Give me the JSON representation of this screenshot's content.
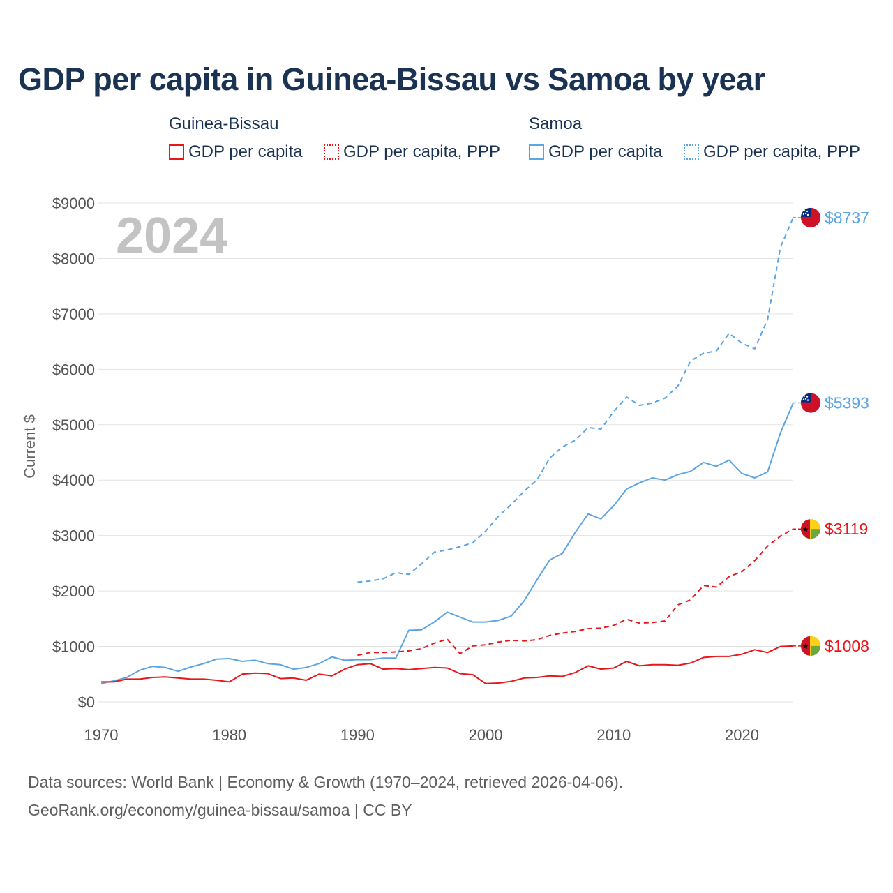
{
  "title": "GDP per capita in Guinea-Bissau vs Samoa by year",
  "legend": {
    "groups": [
      {
        "name": "Guinea-Bissau",
        "items": [
          "GDP per capita",
          "GDP per capita, PPP"
        ]
      },
      {
        "name": "Samoa",
        "items": [
          "GDP per capita",
          "GDP per capita, PPP"
        ]
      }
    ]
  },
  "colors": {
    "guinea_bissau": "#e8161a",
    "samoa": "#5ba4e5",
    "grid": "#e3e3e3"
  },
  "footer": {
    "line1": "Data sources: World Bank | Economy & Growth (1970–2024, retrieved 2026-04-06).",
    "line2": "GeoRank.org/economy/guinea-bissau/samoa | CC BY"
  },
  "chart_data": {
    "type": "line",
    "title": "GDP per capita in Guinea-Bissau vs Samoa by year",
    "year_label": "2024",
    "ylabel": "Current $",
    "xlabel": "",
    "xlim": [
      1970,
      2024
    ],
    "ylim": [
      0,
      9000
    ],
    "x_ticks": [
      1970,
      1980,
      1990,
      2000,
      2010,
      2020
    ],
    "y_ticks": [
      0,
      1000,
      2000,
      3000,
      4000,
      5000,
      6000,
      7000,
      8000,
      9000
    ],
    "y_tick_labels": [
      "$0",
      "$1000",
      "$2000",
      "$3000",
      "$4000",
      "$5000",
      "$6000",
      "$7000",
      "$8000",
      "$9000"
    ],
    "grid": true,
    "series": [
      {
        "name": "Samoa GDP per capita, PPP",
        "country": "Samoa",
        "color": "#5ba4e5",
        "dashed": true,
        "end_label": "$8737",
        "flag": "samoa",
        "x": [
          1990,
          1991,
          1992,
          1993,
          1994,
          1995,
          1996,
          1997,
          1998,
          1999,
          2000,
          2001,
          2002,
          2003,
          2004,
          2005,
          2006,
          2007,
          2008,
          2009,
          2010,
          2011,
          2012,
          2013,
          2014,
          2015,
          2016,
          2017,
          2018,
          2019,
          2020,
          2021,
          2022,
          2023,
          2024
        ],
        "values": [
          2160,
          2180,
          2220,
          2330,
          2300,
          2490,
          2700,
          2740,
          2800,
          2870,
          3080,
          3350,
          3560,
          3800,
          4000,
          4400,
          4600,
          4720,
          4950,
          4920,
          5240,
          5500,
          5350,
          5390,
          5480,
          5700,
          6150,
          6290,
          6330,
          6650,
          6470,
          6370,
          6900,
          8200,
          8737
        ]
      },
      {
        "name": "Samoa GDP per capita",
        "country": "Samoa",
        "color": "#5ba4e5",
        "dashed": false,
        "end_label": "$5393",
        "flag": "samoa",
        "x": [
          1970,
          1971,
          1972,
          1973,
          1974,
          1975,
          1976,
          1977,
          1978,
          1979,
          1980,
          1981,
          1982,
          1983,
          1984,
          1985,
          1986,
          1987,
          1988,
          1989,
          1990,
          1991,
          1992,
          1993,
          1994,
          1995,
          1996,
          1997,
          1998,
          1999,
          2000,
          2001,
          2002,
          2003,
          2004,
          2005,
          2006,
          2007,
          2008,
          2009,
          2010,
          2011,
          2012,
          2013,
          2014,
          2015,
          2016,
          2017,
          2018,
          2019,
          2020,
          2021,
          2022,
          2023,
          2024
        ],
        "values": [
          330,
          380,
          440,
          570,
          640,
          620,
          550,
          630,
          690,
          770,
          780,
          730,
          750,
          690,
          670,
          590,
          620,
          690,
          810,
          750,
          760,
          760,
          790,
          790,
          1290,
          1300,
          1440,
          1620,
          1530,
          1440,
          1440,
          1470,
          1550,
          1820,
          2200,
          2560,
          2680,
          3060,
          3390,
          3300,
          3540,
          3840,
          3950,
          4040,
          4000,
          4100,
          4160,
          4320,
          4250,
          4360,
          4120,
          4040,
          4150,
          4850,
          5393
        ]
      },
      {
        "name": "Guinea-Bissau GDP per capita, PPP",
        "country": "Guinea-Bissau",
        "color": "#e8161a",
        "dashed": true,
        "end_label": "$3119",
        "flag": "guinea-bissau",
        "x": [
          1990,
          1991,
          1992,
          1993,
          1994,
          1995,
          1996,
          1997,
          1998,
          1999,
          2000,
          2001,
          2002,
          2003,
          2004,
          2005,
          2006,
          2007,
          2008,
          2009,
          2010,
          2011,
          2012,
          2013,
          2014,
          2015,
          2016,
          2017,
          2018,
          2019,
          2020,
          2021,
          2022,
          2023,
          2024
        ],
        "values": [
          840,
          890,
          890,
          900,
          920,
          960,
          1060,
          1130,
          870,
          1010,
          1030,
          1080,
          1110,
          1100,
          1120,
          1200,
          1240,
          1270,
          1320,
          1330,
          1380,
          1490,
          1420,
          1430,
          1460,
          1750,
          1840,
          2100,
          2070,
          2260,
          2350,
          2550,
          2810,
          2990,
          3119
        ]
      },
      {
        "name": "Guinea-Bissau GDP per capita",
        "country": "Guinea-Bissau",
        "color": "#e8161a",
        "dashed": false,
        "end_label": "$1008",
        "flag": "guinea-bissau",
        "x": [
          1970,
          1971,
          1972,
          1973,
          1974,
          1975,
          1976,
          1977,
          1978,
          1979,
          1980,
          1981,
          1982,
          1983,
          1984,
          1985,
          1986,
          1987,
          1988,
          1989,
          1990,
          1991,
          1992,
          1993,
          1994,
          1995,
          1996,
          1997,
          1998,
          1999,
          2000,
          2001,
          2002,
          2003,
          2004,
          2005,
          2006,
          2007,
          2008,
          2009,
          2010,
          2011,
          2012,
          2013,
          2014,
          2015,
          2016,
          2017,
          2018,
          2019,
          2020,
          2021,
          2022,
          2023,
          2024
        ],
        "values": [
          360,
          360,
          410,
          410,
          440,
          450,
          430,
          410,
          410,
          390,
          360,
          500,
          520,
          510,
          420,
          430,
          390,
          500,
          470,
          590,
          670,
          690,
          590,
          600,
          580,
          600,
          620,
          610,
          510,
          490,
          330,
          340,
          370,
          430,
          440,
          470,
          460,
          530,
          650,
          590,
          610,
          730,
          650,
          670,
          670,
          660,
          700,
          800,
          820,
          820,
          860,
          940,
          890,
          1000,
          1008
        ]
      }
    ]
  }
}
